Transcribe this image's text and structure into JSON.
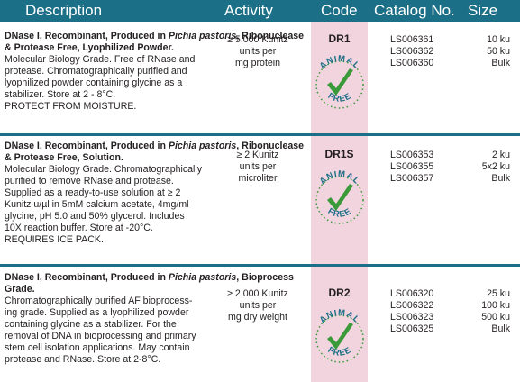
{
  "colors": {
    "header": "#1b6f86",
    "code_column": "#f2d4df",
    "badge_green": "#3a9a3a"
  },
  "headers": {
    "description": "Description",
    "activity": "Activity",
    "code": "Code",
    "catalog": "Catalog No.",
    "size": "Size"
  },
  "badge": {
    "top": "ANIMAL",
    "bottom": "FREE",
    "icon": "checkmark-icon"
  },
  "rows": [
    {
      "title_parts": [
        "DNase I, Recombinant, Produced in ",
        "Pichia pastoris",
        ", Ribonuclease & Protease Free, Lyophilized Powder."
      ],
      "body_lines": [
        "Molecular Biology Grade. Free of RNase and",
        "protease. Chromatographically purified and",
        "lyophilized powder containing glycine as a",
        "stabilizer.  Store at 2 - 8°C.",
        "PROTECT FROM MOISTURE."
      ],
      "activity": [
        "≥ 5,000 Kunitz",
        "units per",
        "mg protein"
      ],
      "code": "DR1",
      "catalog": [
        "LS006361",
        "LS006362",
        "LS006360"
      ],
      "size": [
        "10 ku",
        "50 ku",
        "Bulk"
      ]
    },
    {
      "title_parts": [
        "DNase I, Recombinant, Produced in ",
        "Pichia pastoris",
        ", Ribonuclease & Protease Free, Solution."
      ],
      "body_lines": [
        "Molecular Biology Grade. Chromatographically",
        "purified to remove RNase and protease.",
        "Supplied as a ready-to-use solution at ≥ 2",
        "Kunitz u/µl in 5mM calcium acetate, 4mg/ml",
        "glycine, pH 5.0 and 50% glycerol. Includes",
        "10X reaction buffer.  Store at -20°C.",
        "REQUIRES ICE PACK."
      ],
      "activity": [
        "≥ 2 Kunitz",
        "units per",
        "microliter"
      ],
      "code": "DR1S",
      "catalog": [
        "LS006353",
        "LS006355",
        "LS006357"
      ],
      "size": [
        "2 ku",
        "5x2 ku",
        "Bulk"
      ]
    },
    {
      "title_parts": [
        "DNase I, Recombinant, Produced in ",
        "Pichia pastoris",
        ", Bioprocess Grade."
      ],
      "body_lines": [
        "Chromatographically purified AF bioprocess-",
        "ing grade. Supplied as a lyophilized powder",
        "containing glycine as a stabilizer. For the",
        "removal of DNA in bioprocessing and primary",
        "stem cell isolation applications. May contain",
        "protease and RNase.  Store at 2-8°C."
      ],
      "activity": [
        "≥ 2,000 Kunitz",
        "units per",
        "mg dry weight"
      ],
      "code": "DR2",
      "catalog": [
        "LS006320",
        "LS006322",
        "LS006323",
        "LS006325"
      ],
      "size": [
        "25 ku",
        "100 ku",
        "500 ku",
        "Bulk"
      ]
    }
  ]
}
